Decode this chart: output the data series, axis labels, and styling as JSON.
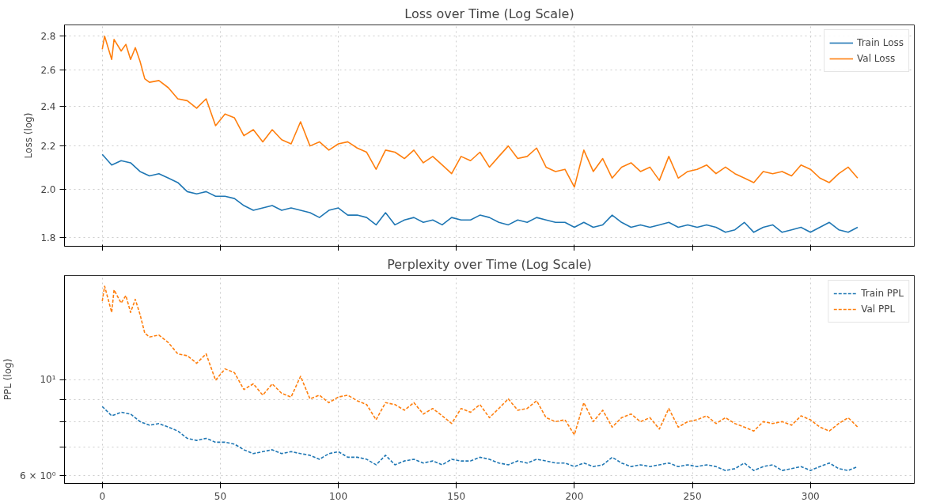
{
  "chart_data": [
    {
      "type": "line",
      "title": "Loss over Time (Log Scale)",
      "ylabel": "Loss (log)",
      "log": "y",
      "grid": true,
      "legend": "top right",
      "line_style": "solid",
      "tick_labels": "y",
      "xlim": [
        -16,
        344
      ],
      "xticks": [
        0,
        50,
        100,
        150,
        200,
        250,
        300
      ],
      "ylim": [
        1.765,
        2.87
      ],
      "yticks": [
        1.8,
        {
          "value": 2.0,
          "label": "2.0"
        },
        2.2,
        2.4,
        2.6,
        2.8
      ],
      "series": [
        {
          "name": "Train Loss",
          "color": "#1f77b4",
          "x": [
            0,
            4,
            8,
            12,
            16,
            20,
            24,
            28,
            32,
            36,
            40,
            44,
            48,
            52,
            56,
            60,
            64,
            68,
            72,
            76,
            80,
            84,
            88,
            92,
            96,
            100,
            104,
            108,
            112,
            116,
            120,
            124,
            128,
            132,
            136,
            140,
            144,
            148,
            152,
            156,
            160,
            164,
            168,
            172,
            176,
            180,
            184,
            188,
            192,
            196,
            200,
            204,
            208,
            212,
            216,
            220,
            224,
            228,
            232,
            236,
            240,
            244,
            248,
            252,
            256,
            260,
            264,
            268,
            272,
            276,
            280,
            284,
            288,
            292,
            296,
            300,
            304,
            308,
            312,
            316,
            320
          ],
          "values": [
            2.16,
            2.11,
            2.13,
            2.12,
            2.08,
            2.06,
            2.07,
            2.05,
            2.03,
            1.99,
            1.98,
            1.99,
            1.97,
            1.97,
            1.96,
            1.93,
            1.91,
            1.92,
            1.93,
            1.91,
            1.92,
            1.91,
            1.9,
            1.88,
            1.91,
            1.92,
            1.89,
            1.89,
            1.88,
            1.85,
            1.9,
            1.85,
            1.87,
            1.88,
            1.86,
            1.87,
            1.85,
            1.88,
            1.87,
            1.87,
            1.89,
            1.88,
            1.86,
            1.85,
            1.87,
            1.86,
            1.88,
            1.87,
            1.86,
            1.86,
            1.84,
            1.86,
            1.84,
            1.85,
            1.89,
            1.86,
            1.84,
            1.85,
            1.84,
            1.85,
            1.86,
            1.84,
            1.85,
            1.84,
            1.85,
            1.84,
            1.82,
            1.83,
            1.86,
            1.82,
            1.84,
            1.85,
            1.82,
            1.83,
            1.84,
            1.82,
            1.84,
            1.86,
            1.83,
            1.82,
            1.84
          ]
        },
        {
          "name": "Val Loss",
          "color": "#ff7f0e",
          "x": [
            0,
            1,
            4,
            5,
            8,
            10,
            12,
            14,
            16,
            18,
            20,
            24,
            28,
            32,
            36,
            40,
            44,
            48,
            52,
            56,
            60,
            64,
            68,
            72,
            76,
            80,
            84,
            88,
            92,
            96,
            100,
            104,
            108,
            112,
            116,
            120,
            124,
            128,
            132,
            136,
            140,
            144,
            148,
            152,
            156,
            160,
            164,
            168,
            172,
            176,
            180,
            184,
            188,
            192,
            196,
            200,
            204,
            208,
            212,
            216,
            220,
            224,
            228,
            232,
            236,
            240,
            244,
            248,
            252,
            256,
            260,
            264,
            268,
            272,
            276,
            280,
            284,
            288,
            292,
            296,
            300,
            304,
            308,
            312,
            316,
            320
          ],
          "values": [
            2.72,
            2.8,
            2.66,
            2.78,
            2.71,
            2.75,
            2.66,
            2.73,
            2.65,
            2.55,
            2.53,
            2.54,
            2.5,
            2.44,
            2.43,
            2.39,
            2.44,
            2.3,
            2.36,
            2.34,
            2.25,
            2.28,
            2.22,
            2.28,
            2.23,
            2.21,
            2.32,
            2.2,
            2.22,
            2.18,
            2.21,
            2.22,
            2.19,
            2.17,
            2.09,
            2.18,
            2.17,
            2.14,
            2.18,
            2.12,
            2.15,
            2.11,
            2.07,
            2.15,
            2.13,
            2.17,
            2.1,
            2.15,
            2.2,
            2.14,
            2.15,
            2.19,
            2.1,
            2.08,
            2.09,
            2.01,
            2.18,
            2.08,
            2.14,
            2.05,
            2.1,
            2.12,
            2.08,
            2.1,
            2.04,
            2.15,
            2.05,
            2.08,
            2.09,
            2.11,
            2.07,
            2.1,
            2.07,
            2.05,
            2.03,
            2.08,
            2.07,
            2.08,
            2.06,
            2.11,
            2.09,
            2.05,
            2.03,
            2.07,
            2.1,
            2.05
          ]
        }
      ]
    },
    {
      "type": "line",
      "title": "Perplexity over Time (Log Scale)",
      "ylabel": "PPL (log)",
      "log": "y",
      "grid": true,
      "legend": "top right",
      "line_style": "dashed",
      "xlim": [
        -16,
        344
      ],
      "xticks": [
        0,
        50,
        100,
        150,
        200,
        250,
        300
      ],
      "ylim": [
        5.76,
        17.4
      ],
      "yticks": [
        {
          "value": 6,
          "label": "6 × 10⁰"
        },
        {
          "value": 7,
          "label": null
        },
        {
          "value": 8,
          "label": null
        },
        {
          "value": 9,
          "label": null
        },
        {
          "value": 10,
          "label": "10¹"
        }
      ],
      "series": [
        {
          "name": "Train PPL",
          "color": "#1f77b4",
          "x": [
            0,
            4,
            8,
            12,
            16,
            20,
            24,
            28,
            32,
            36,
            40,
            44,
            48,
            52,
            56,
            60,
            64,
            68,
            72,
            76,
            80,
            84,
            88,
            92,
            96,
            100,
            104,
            108,
            112,
            116,
            120,
            124,
            128,
            132,
            136,
            140,
            144,
            148,
            152,
            156,
            160,
            164,
            168,
            172,
            176,
            180,
            184,
            188,
            192,
            196,
            200,
            204,
            208,
            212,
            216,
            220,
            224,
            228,
            232,
            236,
            240,
            244,
            248,
            252,
            256,
            260,
            264,
            268,
            272,
            276,
            280,
            284,
            288,
            292,
            296,
            300,
            304,
            308,
            312,
            316,
            320
          ],
          "values": [
            8.67,
            8.25,
            8.41,
            8.33,
            8.0,
            7.85,
            7.92,
            7.77,
            7.61,
            7.32,
            7.24,
            7.32,
            7.17,
            7.17,
            7.1,
            6.89,
            6.75,
            6.82,
            6.89,
            6.75,
            6.82,
            6.75,
            6.69,
            6.55,
            6.75,
            6.82,
            6.62,
            6.62,
            6.55,
            6.36,
            6.69,
            6.36,
            6.49,
            6.55,
            6.42,
            6.49,
            6.36,
            6.55,
            6.49,
            6.49,
            6.62,
            6.55,
            6.42,
            6.36,
            6.49,
            6.42,
            6.55,
            6.49,
            6.42,
            6.42,
            6.3,
            6.42,
            6.3,
            6.36,
            6.62,
            6.42,
            6.3,
            6.36,
            6.3,
            6.36,
            6.42,
            6.3,
            6.36,
            6.3,
            6.36,
            6.3,
            6.17,
            6.23,
            6.42,
            6.17,
            6.3,
            6.36,
            6.17,
            6.23,
            6.3,
            6.17,
            6.3,
            6.42,
            6.23,
            6.17,
            6.3
          ]
        },
        {
          "name": "Val PPL",
          "color": "#ff7f0e",
          "x": [
            0,
            1,
            4,
            5,
            8,
            10,
            12,
            14,
            16,
            18,
            20,
            24,
            28,
            32,
            36,
            40,
            44,
            48,
            52,
            56,
            60,
            64,
            68,
            72,
            76,
            80,
            84,
            88,
            92,
            96,
            100,
            104,
            108,
            112,
            116,
            120,
            124,
            128,
            132,
            136,
            140,
            144,
            148,
            152,
            156,
            160,
            164,
            168,
            172,
            176,
            180,
            184,
            188,
            192,
            196,
            200,
            204,
            208,
            212,
            216,
            220,
            224,
            228,
            232,
            236,
            240,
            244,
            248,
            252,
            256,
            260,
            264,
            268,
            272,
            276,
            280,
            284,
            288,
            292,
            296,
            300,
            304,
            308,
            312,
            316,
            320
          ],
          "values": [
            15.18,
            16.44,
            14.3,
            16.12,
            15.03,
            15.64,
            14.3,
            15.33,
            14.15,
            12.81,
            12.55,
            12.68,
            12.18,
            11.47,
            11.36,
            10.91,
            11.47,
            9.97,
            10.59,
            10.38,
            9.49,
            9.78,
            9.21,
            9.78,
            9.3,
            9.12,
            10.18,
            9.03,
            9.21,
            8.85,
            9.12,
            9.21,
            8.94,
            8.76,
            8.08,
            8.85,
            8.76,
            8.5,
            8.85,
            8.33,
            8.58,
            8.25,
            7.92,
            8.58,
            8.41,
            8.76,
            8.17,
            8.58,
            9.03,
            8.5,
            8.58,
            8.94,
            8.17,
            8.0,
            8.08,
            7.46,
            8.85,
            8.0,
            8.5,
            7.77,
            8.17,
            8.33,
            8.0,
            8.17,
            7.69,
            8.58,
            7.77,
            8.0,
            8.08,
            8.25,
            7.92,
            8.17,
            7.92,
            7.77,
            7.61,
            8.0,
            7.92,
            8.0,
            7.85,
            8.25,
            8.08,
            7.77,
            7.61,
            7.92,
            8.17,
            7.77
          ]
        }
      ]
    }
  ]
}
